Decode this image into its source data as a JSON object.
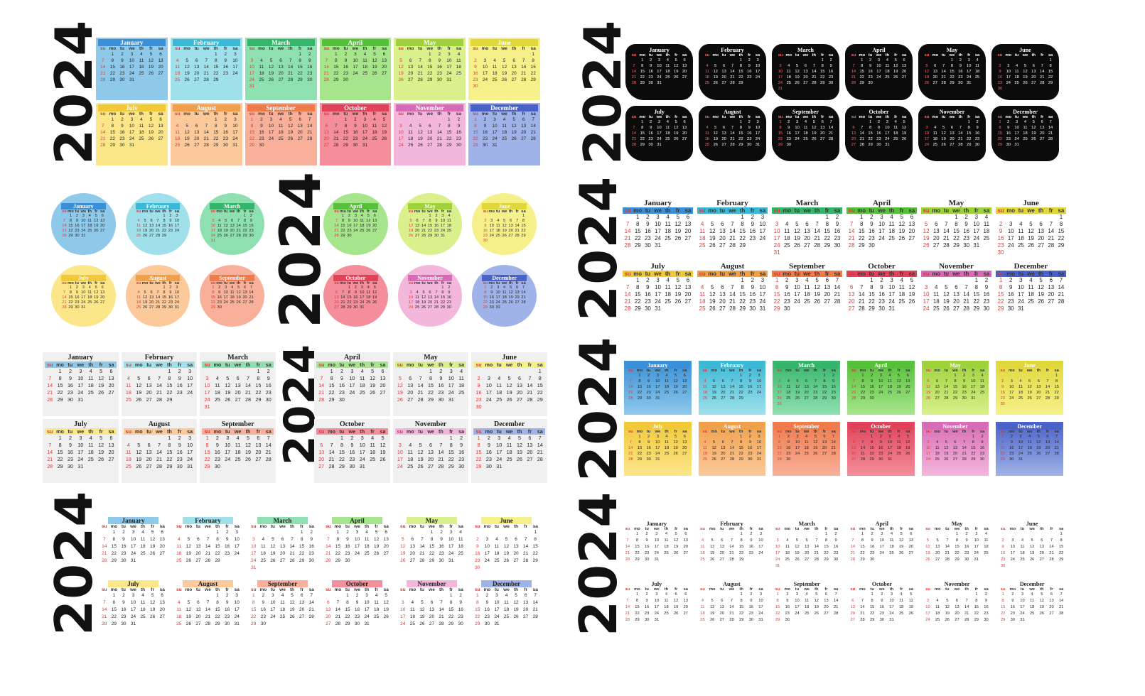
{
  "year": "2024",
  "months": [
    "January",
    "February",
    "March",
    "April",
    "May",
    "June",
    "July",
    "August",
    "September",
    "October",
    "November",
    "December"
  ],
  "weekdays": [
    "su",
    "mo",
    "tu",
    "we",
    "th",
    "fr",
    "sa"
  ],
  "month_start_offsets": [
    1,
    4,
    5,
    1,
    3,
    6,
    1,
    4,
    0,
    2,
    5,
    0
  ],
  "month_lengths": [
    31,
    29,
    31,
    30,
    31,
    30,
    31,
    31,
    30,
    31,
    30,
    31
  ],
  "palette": [
    "#8ec9ea",
    "#9fe0ea",
    "#8fe0b0",
    "#a6e58c",
    "#d9f08c",
    "#f6f08a",
    "#fbe68a",
    "#fbc99a",
    "#f8b09a",
    "#f38e9a",
    "#f3b7dc",
    "#9fb3e8"
  ],
  "header_palette": [
    "#3a8fd6",
    "#3ab8d6",
    "#35b56a",
    "#56c03a",
    "#9dd23a",
    "#e0d83a",
    "#f0c83a",
    "#f0a04a",
    "#ef7a4a",
    "#e0425a",
    "#d86bb5",
    "#4a62c8"
  ],
  "layouts": [
    {
      "style": "pastel-block"
    },
    {
      "style": "black-brush"
    },
    {
      "style": "circles"
    },
    {
      "style": "white-color-strip"
    },
    {
      "style": "gray-cards"
    },
    {
      "style": "gradient-cards"
    },
    {
      "style": "brush-strip"
    },
    {
      "style": "plain"
    }
  ]
}
